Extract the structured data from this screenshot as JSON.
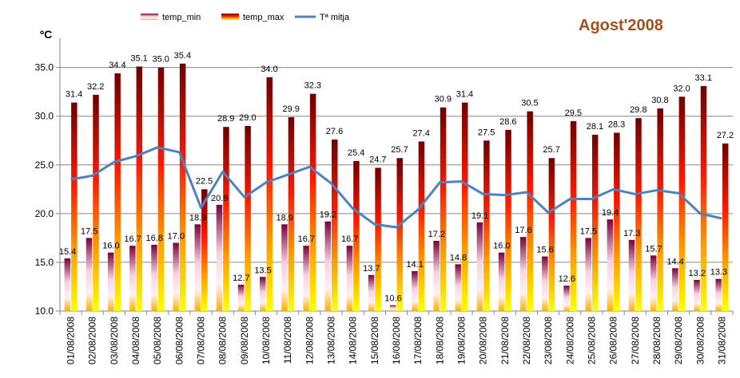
{
  "chart_data": {
    "type": "bar",
    "title": "Agost'2008",
    "title_color": "#A0521E",
    "ylabel": "ºC",
    "xlabel": "",
    "ylim": [
      10.0,
      38.0
    ],
    "yticks": [
      "10.0",
      "15.0",
      "20.0",
      "25.0",
      "30.0",
      "35.0"
    ],
    "ytick_values": [
      10,
      15,
      20,
      25,
      30,
      35
    ],
    "grid": "horizontal",
    "legend_position": "top",
    "categories": [
      "01/08/2008",
      "02/08/2008",
      "03/08/2008",
      "04/08/2008",
      "05/08/2008",
      "06/08/2008",
      "07/08/2008",
      "08/08/2008",
      "09/08/2008",
      "10/08/2008",
      "11/08/2008",
      "12/08/2008",
      "13/08/2008",
      "14/08/2008",
      "15/08/2008",
      "16/08/2008",
      "17/08/2008",
      "18/08/2008",
      "19/08/2008",
      "20/08/2008",
      "21/08/2008",
      "22/08/2008",
      "23/08/2008",
      "24/08/2008",
      "25/08/2008",
      "26/08/2008",
      "27/08/2008",
      "28/08/2008",
      "29/08/2008",
      "30/08/2008",
      "31/08/2008"
    ],
    "series": [
      {
        "name": "temp_min",
        "kind": "bar",
        "values": [
          15.4,
          17.5,
          16.0,
          16.7,
          16.8,
          17.0,
          18.9,
          20.9,
          12.7,
          13.5,
          18.9,
          16.7,
          19.2,
          16.7,
          13.7,
          10.6,
          14.1,
          17.2,
          14.8,
          19.1,
          16.0,
          17.6,
          15.6,
          12.6,
          17.5,
          19.4,
          17.3,
          15.7,
          14.4,
          13.2,
          13.3
        ],
        "labels": [
          "15.4",
          "17.5",
          "16.0",
          "16.7",
          "16.8",
          "17.0",
          "18.9",
          "20.9",
          "12.7",
          "13.5",
          "18.9",
          "16.7",
          "19.2",
          "16.7",
          "13.7",
          "10.6",
          "14.1",
          "17.2",
          "14.8",
          "19.1",
          "16.0",
          "17.6",
          "15.6",
          "12.6",
          "17.5",
          "19.4",
          "17.3",
          "15.7",
          "14.4",
          "13.2",
          "13.3"
        ]
      },
      {
        "name": "temp_max",
        "kind": "bar",
        "values": [
          31.4,
          32.2,
          34.4,
          35.1,
          35.0,
          35.4,
          22.5,
          28.9,
          29.0,
          34.0,
          29.9,
          32.3,
          27.6,
          25.4,
          24.7,
          25.7,
          27.4,
          30.9,
          31.4,
          27.5,
          28.6,
          30.5,
          25.7,
          29.5,
          28.1,
          28.3,
          29.8,
          30.8,
          32.0,
          33.1,
          27.2
        ],
        "labels": [
          "31.4",
          "32.2",
          "34.4",
          "35.1",
          "35.0",
          "35.4",
          "22.5",
          "28.9",
          "29.0",
          "34.0",
          "29.9",
          "32.3",
          "27.6",
          "25.4",
          "24.7",
          "25.7",
          "27.4",
          "30.9",
          "31.4",
          "27.5",
          "28.6",
          "30.5",
          "25.7",
          "29.5",
          "28.1",
          "28.3",
          "29.8",
          "30.8",
          "32.0",
          "33.1",
          "27.2"
        ]
      },
      {
        "name": "Tª mitja",
        "kind": "line",
        "color": "#4F81BD",
        "values": [
          23.5,
          23.9,
          25.3,
          25.9,
          26.8,
          26.3,
          20.6,
          24.3,
          21.7,
          23.2,
          24.0,
          24.8,
          23.1,
          20.5,
          18.9,
          18.6,
          20.4,
          23.2,
          23.3,
          22.0,
          21.9,
          22.2,
          20.1,
          21.5,
          21.5,
          22.5,
          22.0,
          22.4,
          22.1,
          20.0,
          19.5
        ]
      }
    ],
    "colors": {
      "max_top": "#7F0000",
      "max_mid": "#FF2000",
      "max_low": "#FF9900",
      "max_bottom": "#FFFF00",
      "min_top": "#800040",
      "min_mid": "#F9C6D8",
      "min_bottom": "#FFB000",
      "line": "#4F81BD",
      "axis": "#868686",
      "grid": "#868686"
    }
  }
}
